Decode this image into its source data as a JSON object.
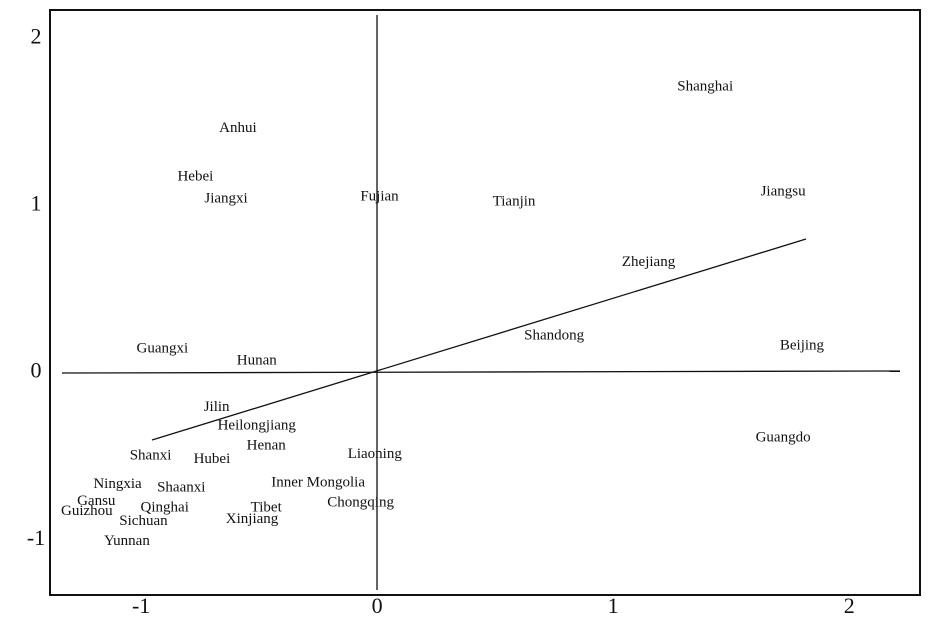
{
  "chart_data": {
    "type": "scatter",
    "xlim": [
      -1.386,
      2.3
    ],
    "ylim": [
      -1.33,
      2.17
    ],
    "xticks": [
      -1,
      0,
      1,
      2
    ],
    "yticks": [
      -1,
      0,
      1,
      2
    ],
    "labels": [
      "Shanghai",
      "Anhui",
      "Hebei",
      "Jiangxi",
      "Fujian",
      "Tianjin",
      "Jiangsu",
      "Zhejiang",
      "Shandong",
      "Beijing",
      "Guangxi",
      "Hunan",
      "Jilin",
      "Heilongjiang",
      "Henan",
      "Shanxi",
      "Hubei",
      "Liaoning",
      "Guangdo",
      "Ningxia",
      "Shaanxi",
      "Inner Mongolia",
      "Gansu",
      "Qinghai",
      "Tibet",
      "Chongqing",
      "Guizhou",
      "Sichuan",
      "Xinjiang",
      "Yunnan"
    ],
    "x": [
      1.39,
      -0.59,
      -0.77,
      -0.64,
      0.01,
      0.58,
      1.72,
      1.15,
      0.75,
      1.8,
      -0.91,
      -0.51,
      -0.68,
      -0.51,
      -0.47,
      -0.96,
      -0.7,
      -0.01,
      1.72,
      -1.1,
      -0.83,
      -0.25,
      -1.19,
      -0.9,
      -0.47,
      -0.07,
      -1.23,
      -0.99,
      -0.53,
      -1.06
    ],
    "values": [
      1.71,
      1.46,
      1.17,
      1.04,
      1.05,
      1.02,
      1.08,
      0.66,
      0.22,
      0.16,
      0.14,
      0.07,
      -0.21,
      -0.32,
      -0.44,
      -0.5,
      -0.52,
      -0.49,
      -0.39,
      -0.67,
      -0.69,
      -0.66,
      -0.77,
      -0.81,
      -0.81,
      -0.78,
      -0.83,
      -0.89,
      -0.88,
      -1.01
    ]
  }
}
